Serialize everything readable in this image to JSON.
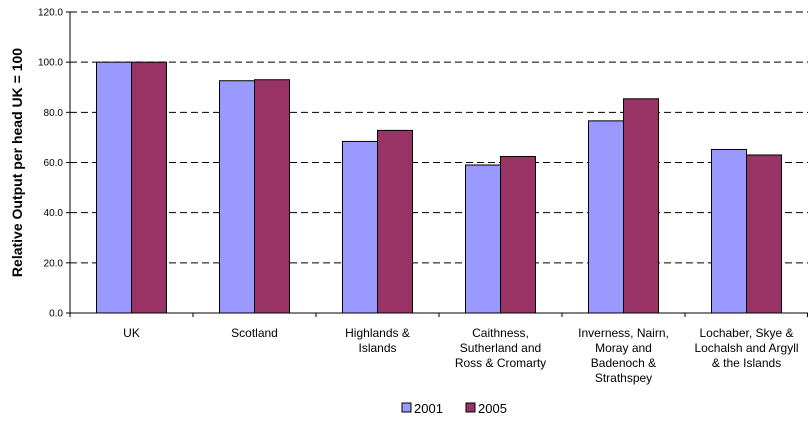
{
  "chart_data": {
    "type": "bar",
    "title": "",
    "xlabel": "",
    "ylabel": "Relative Output per head UK = 100",
    "ylim": [
      0,
      120
    ],
    "yticks": [
      "0.0",
      "20.0",
      "40.0",
      "60.0",
      "80.0",
      "100.0",
      "120.0"
    ],
    "grid": "dashed horizontal",
    "legend_position": "bottom",
    "categories": [
      [
        "UK"
      ],
      [
        "Scotland"
      ],
      [
        "Highlands &",
        "Islands"
      ],
      [
        "Caithness,",
        "Sutherland and",
        "Ross & Cromarty"
      ],
      [
        "Inverness, Nairn,",
        "Moray and",
        "Badenoch &",
        "Strathspey"
      ],
      [
        "Lochaber, Skye &",
        "Lochalsh and Argyll",
        "& the Islands"
      ]
    ],
    "series": [
      {
        "name": "2001",
        "color": "#9999ff",
        "values": [
          100,
          92.6,
          68.4,
          59.0,
          76.6,
          65.2
        ]
      },
      {
        "name": "2005",
        "color": "#993366",
        "values": [
          100,
          93.0,
          72.8,
          62.4,
          85.4,
          63.0
        ]
      }
    ]
  }
}
